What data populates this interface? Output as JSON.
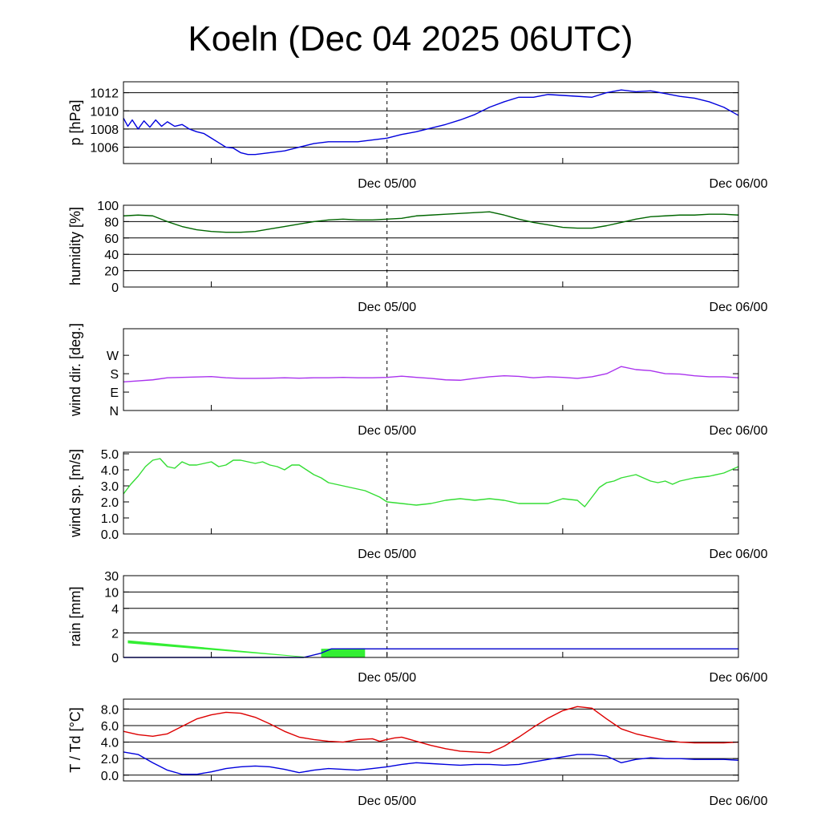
{
  "title": "Koeln (Dec 04 2025 06UTC)",
  "x_axis": {
    "start": "Dec 04 06UTC",
    "range_hours": [
      0,
      42
    ],
    "minor_tick_hours": [
      6,
      18,
      30
    ],
    "dashed_line_hour": 18,
    "labels": [
      {
        "hour": 18,
        "text": "Dec 05/00"
      },
      {
        "hour": 42,
        "text": "Dec 06/00"
      }
    ]
  },
  "chart_data": [
    {
      "type": "line",
      "id": "pressure",
      "ylabel": "p [hPa]",
      "ylim": [
        1004.2,
        1013.2
      ],
      "yticks": [
        1006,
        1008,
        1010,
        1012
      ],
      "tick_labels": [
        "1006",
        "1008",
        "1010",
        "1012"
      ],
      "grid": true,
      "series": [
        {
          "name": "p",
          "color": "#0000dd",
          "x": [
            0,
            0.3,
            0.6,
            1,
            1.4,
            1.8,
            2.2,
            2.6,
            3,
            3.5,
            4,
            4.5,
            5,
            5.5,
            6,
            6.5,
            7,
            7.5,
            8,
            8.5,
            9,
            10,
            11,
            12,
            13,
            14,
            15,
            16,
            17,
            18,
            19,
            20,
            21,
            22,
            23,
            24,
            25,
            26,
            27,
            28,
            29,
            30,
            31,
            32,
            33,
            34,
            35,
            36,
            37,
            38,
            39,
            40,
            41,
            42
          ],
          "y": [
            1009.2,
            1008.3,
            1009.0,
            1008.0,
            1008.9,
            1008.2,
            1009.0,
            1008.3,
            1008.8,
            1008.3,
            1008.5,
            1008.0,
            1007.7,
            1007.5,
            1007.0,
            1006.5,
            1006.0,
            1005.9,
            1005.4,
            1005.2,
            1005.2,
            1005.4,
            1005.6,
            1006.0,
            1006.4,
            1006.6,
            1006.6,
            1006.6,
            1006.8,
            1007.0,
            1007.4,
            1007.7,
            1008.1,
            1008.5,
            1009.0,
            1009.6,
            1010.4,
            1011.0,
            1011.5,
            1011.5,
            1011.8,
            1011.7,
            1011.6,
            1011.5,
            1012.0,
            1012.3,
            1012.1,
            1012.2,
            1011.9,
            1011.6,
            1011.4,
            1011.0,
            1010.4,
            1009.5
          ]
        }
      ]
    },
    {
      "type": "line",
      "id": "humidity",
      "ylabel": "humidity [%]",
      "ylim": [
        0,
        100
      ],
      "yticks": [
        0,
        20,
        40,
        60,
        80,
        100
      ],
      "tick_labels": [
        "0",
        "20",
        "40",
        "60",
        "80",
        "100"
      ],
      "grid": true,
      "series": [
        {
          "name": "rh",
          "color": "#006600",
          "x": [
            0,
            1,
            2,
            3,
            4,
            5,
            6,
            7,
            8,
            9,
            10,
            11,
            12,
            13,
            14,
            15,
            16,
            17,
            18,
            19,
            20,
            21,
            22,
            23,
            24,
            25,
            26,
            27,
            28,
            29,
            30,
            31,
            32,
            33,
            34,
            35,
            36,
            37,
            38,
            39,
            40,
            41,
            42
          ],
          "y": [
            87,
            88,
            87,
            80,
            74,
            70,
            68,
            67,
            67,
            68,
            71,
            74,
            77,
            80,
            82,
            83,
            82,
            82,
            83,
            84,
            87,
            88,
            89,
            90,
            91,
            92,
            88,
            83,
            79,
            76,
            73,
            72,
            72,
            75,
            79,
            83,
            86,
            87,
            88,
            88,
            89,
            89,
            88
          ]
        }
      ]
    },
    {
      "type": "line",
      "id": "wind_direction",
      "ylabel": "wind dir. [deg.]",
      "ylim": [
        0,
        400
      ],
      "yticks": [
        0,
        90,
        180,
        270
      ],
      "tick_labels": [
        "N",
        "E",
        "S",
        "W"
      ],
      "grid": false,
      "series": [
        {
          "name": "dd",
          "color": "#aa33ee",
          "x": [
            0,
            1,
            2,
            3,
            4,
            5,
            6,
            7,
            8,
            9,
            10,
            11,
            12,
            13,
            14,
            15,
            16,
            17,
            18,
            19,
            20,
            21,
            22,
            23,
            24,
            25,
            26,
            27,
            28,
            29,
            30,
            31,
            32,
            33,
            34,
            35,
            36,
            37,
            38,
            39,
            40,
            41,
            42
          ],
          "y": [
            140,
            145,
            150,
            160,
            162,
            164,
            166,
            160,
            157,
            157,
            158,
            160,
            158,
            160,
            160,
            162,
            160,
            160,
            162,
            168,
            162,
            157,
            150,
            148,
            157,
            165,
            170,
            167,
            160,
            165,
            162,
            157,
            165,
            180,
            215,
            200,
            195,
            180,
            178,
            170,
            165,
            165,
            160
          ]
        }
      ]
    },
    {
      "type": "line",
      "id": "wind_speed",
      "ylabel": "wind sp. [m/s]",
      "ylim": [
        0,
        5.1
      ],
      "yticks": [
        0,
        1,
        2,
        3,
        4,
        5
      ],
      "tick_labels": [
        "0.0",
        "1.0",
        "2.0",
        "3.0",
        "4.0",
        "5.0"
      ],
      "grid": false,
      "series": [
        {
          "name": "ff",
          "color": "#33dd33",
          "x": [
            0,
            0.5,
            1,
            1.5,
            2,
            2.5,
            3,
            3.5,
            4,
            4.5,
            5,
            5.5,
            6,
            6.5,
            7,
            7.5,
            8,
            8.5,
            9,
            9.5,
            10,
            10.5,
            11,
            11.5,
            12,
            12.5,
            13,
            13.5,
            14,
            14.5,
            15,
            15.5,
            16,
            16.5,
            17,
            17.5,
            18,
            19,
            20,
            21,
            22,
            23,
            24,
            25,
            26,
            27,
            28,
            29,
            30,
            31,
            31.5,
            32,
            32.5,
            33,
            33.5,
            34,
            35,
            35.5,
            36,
            36.5,
            37,
            37.5,
            38,
            39,
            40,
            41,
            42
          ],
          "y": [
            2.5,
            3.1,
            3.6,
            4.2,
            4.6,
            4.7,
            4.2,
            4.1,
            4.5,
            4.3,
            4.3,
            4.4,
            4.5,
            4.2,
            4.3,
            4.6,
            4.6,
            4.5,
            4.4,
            4.5,
            4.3,
            4.2,
            4.0,
            4.3,
            4.3,
            4.0,
            3.7,
            3.5,
            3.2,
            3.1,
            3.0,
            2.9,
            2.8,
            2.7,
            2.5,
            2.3,
            2.0,
            1.9,
            1.8,
            1.9,
            2.1,
            2.2,
            2.1,
            2.2,
            2.1,
            1.9,
            1.9,
            1.9,
            2.2,
            2.1,
            1.7,
            2.3,
            2.9,
            3.2,
            3.3,
            3.5,
            3.7,
            3.5,
            3.3,
            3.2,
            3.3,
            3.1,
            3.3,
            3.5,
            3.6,
            3.8,
            4.2
          ]
        }
      ]
    },
    {
      "type": "area",
      "id": "rain",
      "ylabel": "rain [mm]",
      "scale": "nonlinear",
      "ylim": [
        0,
        30
      ],
      "yticks": [
        0,
        2,
        4,
        10,
        30
      ],
      "tick_labels": [
        "0",
        "2",
        "4",
        "10",
        "30"
      ],
      "grid": true,
      "series": [
        {
          "name": "rain_band_falling",
          "color": "#33ee33",
          "x": [
            0.3,
            12.5
          ],
          "y_top": [
            1.4,
            0.05
          ],
          "y_bottom": [
            1.15,
            0.0
          ]
        },
        {
          "name": "rain_band_rising",
          "color": "#33ee33",
          "x": [
            13.5,
            16.5
          ],
          "y_top": [
            0.7,
            0.75
          ],
          "y_bottom": [
            0.0,
            0.0
          ]
        },
        {
          "name": "rain_total",
          "color": "#0000cc",
          "x": [
            0,
            12.3,
            13.5,
            14.2,
            42
          ],
          "y": [
            0,
            0,
            0.35,
            0.7,
            0.7
          ]
        }
      ]
    },
    {
      "type": "line",
      "id": "temperature",
      "ylabel": "T / Td [°C]",
      "ylim": [
        -0.7,
        9.2
      ],
      "yticks": [
        0,
        2,
        4,
        6,
        8
      ],
      "tick_labels": [
        "0.0",
        "2.0",
        "4.0",
        "6.0",
        "8.0"
      ],
      "grid": true,
      "series": [
        {
          "name": "T",
          "color": "#dd0000",
          "x": [
            0,
            1,
            2,
            3,
            4,
            5,
            6,
            7,
            8,
            9,
            10,
            11,
            12,
            13,
            14,
            15,
            16,
            17,
            17.5,
            18,
            18.5,
            19,
            20,
            21,
            22,
            23,
            24,
            25,
            26,
            27,
            28,
            29,
            30,
            31,
            32,
            33,
            34,
            35,
            36,
            37,
            38,
            39,
            40,
            41,
            42
          ],
          "y": [
            5.3,
            4.9,
            4.7,
            5.0,
            5.9,
            6.8,
            7.3,
            7.6,
            7.5,
            7.0,
            6.2,
            5.3,
            4.6,
            4.3,
            4.1,
            4.0,
            4.3,
            4.4,
            4.1,
            4.3,
            4.5,
            4.6,
            4.1,
            3.6,
            3.2,
            2.9,
            2.8,
            2.7,
            3.5,
            4.6,
            5.8,
            6.9,
            7.8,
            8.3,
            8.1,
            6.8,
            5.6,
            5.0,
            4.6,
            4.2,
            4.0,
            3.9,
            3.9,
            3.9,
            4.0
          ]
        },
        {
          "name": "Td",
          "color": "#0000dd",
          "x": [
            0,
            1,
            2,
            3,
            4,
            5,
            6,
            7,
            8,
            9,
            10,
            11,
            12,
            13,
            14,
            15,
            16,
            17,
            18,
            19,
            20,
            21,
            22,
            23,
            24,
            25,
            26,
            27,
            28,
            29,
            30,
            31,
            32,
            33,
            34,
            35,
            36,
            37,
            38,
            39,
            40,
            41,
            42
          ],
          "y": [
            2.8,
            2.5,
            1.5,
            0.6,
            0.1,
            0.1,
            0.4,
            0.8,
            1.0,
            1.1,
            1.0,
            0.7,
            0.3,
            0.6,
            0.8,
            0.7,
            0.6,
            0.8,
            1.0,
            1.3,
            1.5,
            1.4,
            1.3,
            1.2,
            1.3,
            1.3,
            1.2,
            1.3,
            1.6,
            1.9,
            2.2,
            2.5,
            2.5,
            2.3,
            1.5,
            1.9,
            2.1,
            2.0,
            2.0,
            1.9,
            1.9,
            1.9,
            1.8
          ]
        }
      ]
    }
  ]
}
